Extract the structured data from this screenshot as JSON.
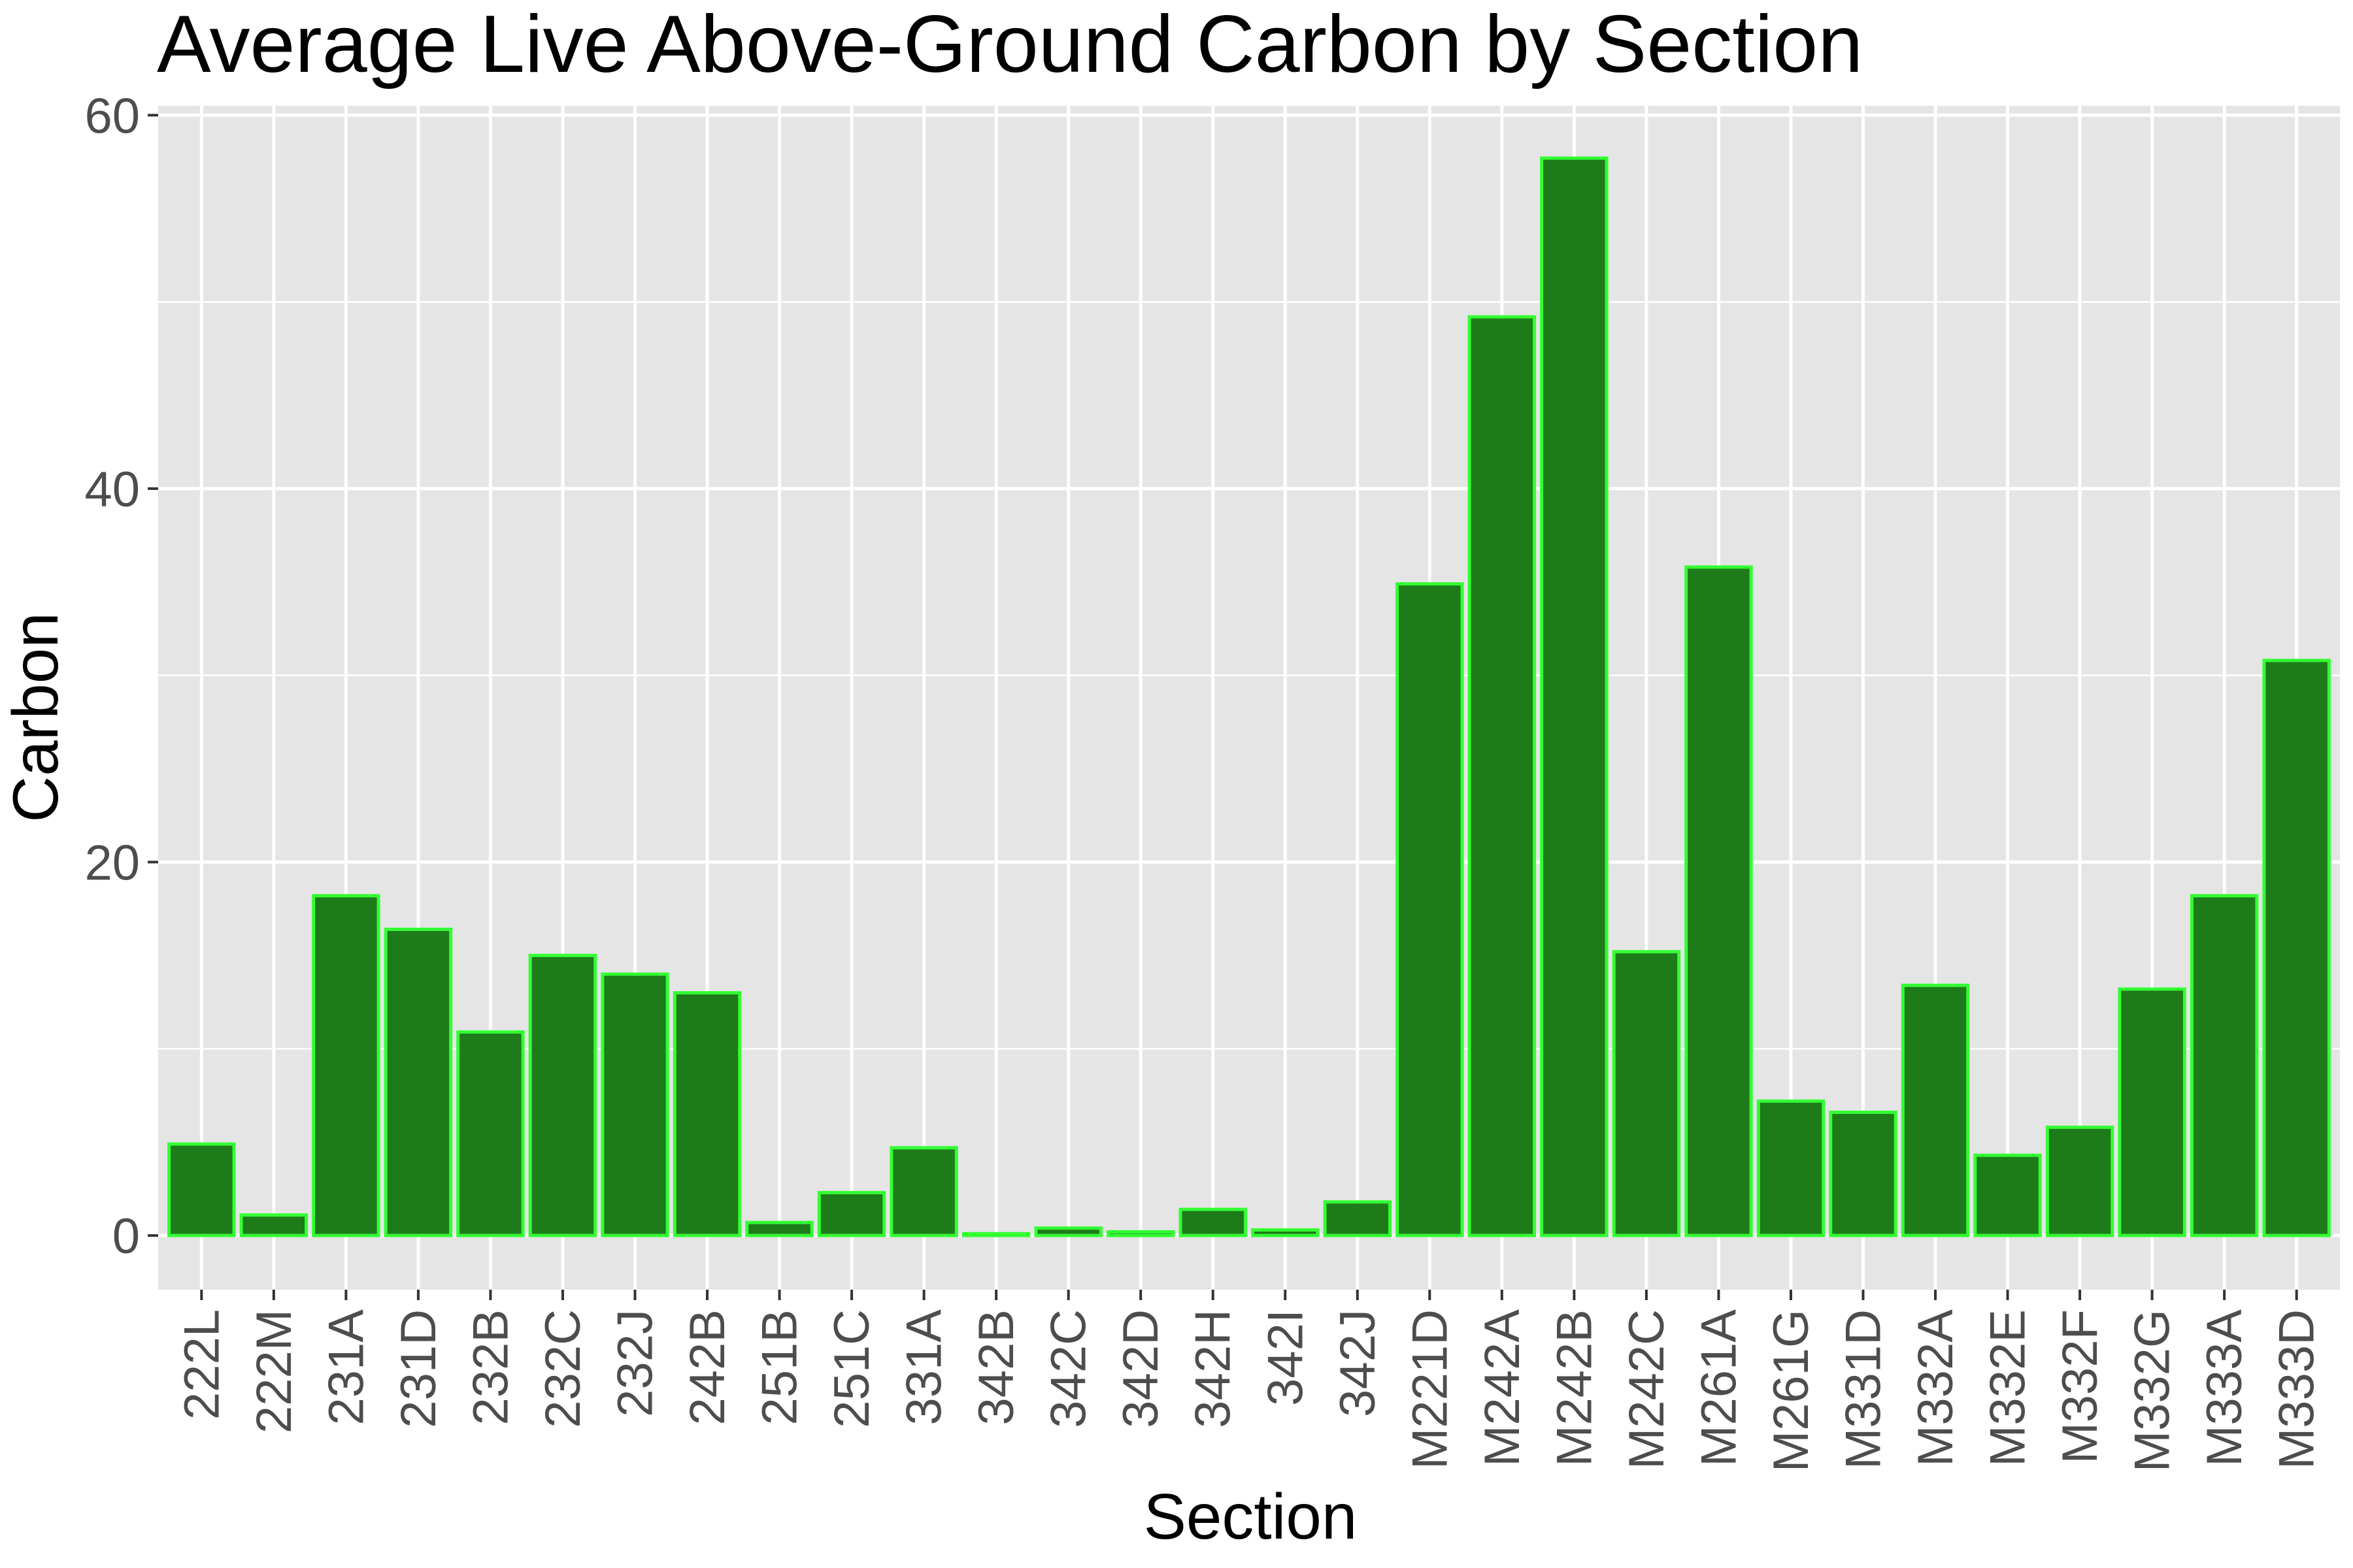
{
  "chart_data": {
    "type": "bar",
    "title": "Average Live Above-Ground Carbon by Section",
    "xlabel": "Section",
    "ylabel": "Carbon",
    "categories": [
      "222L",
      "222M",
      "231A",
      "231D",
      "232B",
      "232C",
      "232J",
      "242B",
      "251B",
      "251C",
      "331A",
      "342B",
      "342C",
      "342D",
      "342H",
      "342I",
      "342J",
      "M221D",
      "M242A",
      "M242B",
      "M242C",
      "M261A",
      "M261G",
      "M331D",
      "M332A",
      "M332E",
      "M332F",
      "M332G",
      "M333A",
      "M333D"
    ],
    "values": [
      4.9,
      1.1,
      18.2,
      16.4,
      10.9,
      15.0,
      14.0,
      13.0,
      0.7,
      2.3,
      4.7,
      0.1,
      0.4,
      0.2,
      1.4,
      0.3,
      1.8,
      34.9,
      49.2,
      57.7,
      15.2,
      35.8,
      7.2,
      6.6,
      13.4,
      4.3,
      5.8,
      13.2,
      18.2,
      30.8
    ],
    "ylim": [
      -2.9,
      60.5
    ],
    "yticks": [
      0,
      20,
      40,
      60
    ],
    "grid": true,
    "colors": {
      "bar_fill": "#1e7b1a",
      "bar_outline": "#33ff33",
      "panel": "#e5e5e5"
    }
  }
}
